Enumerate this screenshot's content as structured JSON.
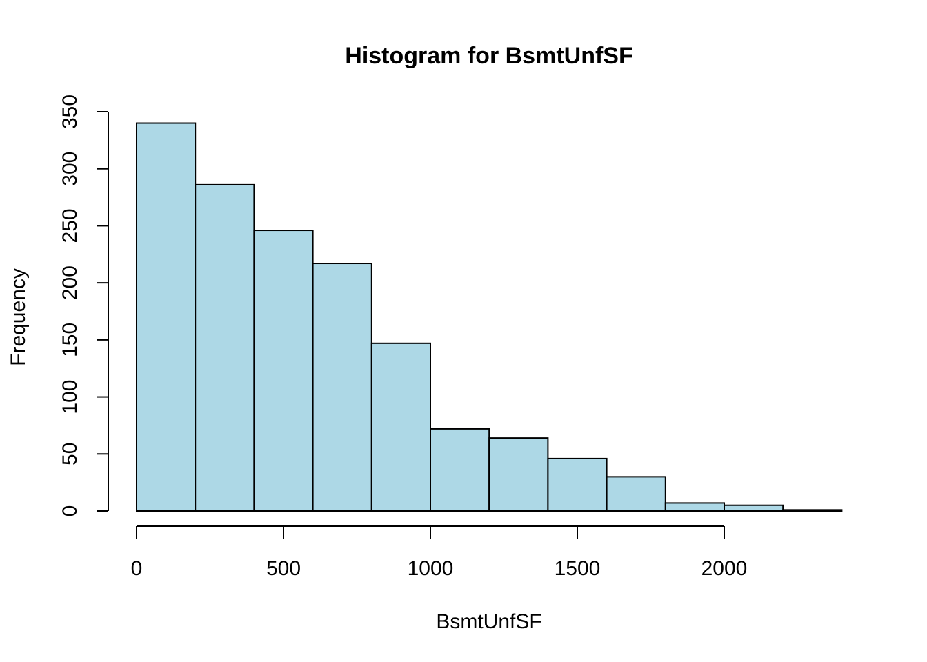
{
  "chart_data": {
    "type": "histogram",
    "title": "Histogram for BsmtUnfSF",
    "x_label": "BsmtUnfSF",
    "y_label": "Frequency",
    "bins": [
      0,
      200,
      400,
      600,
      800,
      1000,
      1200,
      1400,
      1600,
      1800,
      2000,
      2200,
      2400
    ],
    "values": [
      340,
      286,
      246,
      217,
      147,
      72,
      64,
      46,
      30,
      7,
      5,
      1
    ],
    "color": "#add8e6",
    "xlim": [
      0,
      2400
    ],
    "xticks": [
      0,
      500,
      1000,
      1500,
      2000
    ],
    "ylim": [
      0,
      350
    ],
    "yticks": [
      0,
      50,
      100,
      150,
      200,
      250,
      300,
      350
    ]
  }
}
